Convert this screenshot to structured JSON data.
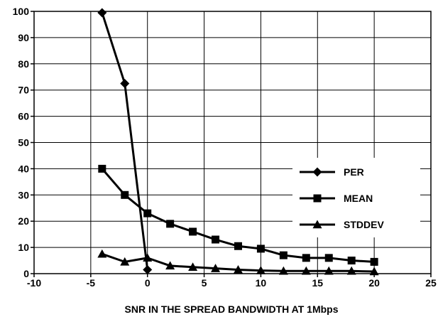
{
  "chart_data": {
    "type": "line",
    "title": "",
    "xlabel": "SNR IN THE SPREAD BANDWIDTH AT 1Mbps",
    "ylabel": "",
    "xlim": [
      -10,
      25
    ],
    "ylim": [
      0,
      100
    ],
    "x_ticks": [
      "-10",
      "-5",
      "0",
      "5",
      "10",
      "15",
      "20",
      "25"
    ],
    "y_ticks": [
      "0",
      "10",
      "20",
      "30",
      "40",
      "50",
      "60",
      "70",
      "80",
      "90",
      "100"
    ],
    "grid": true,
    "legend_position": "right",
    "series": [
      {
        "name": "PER",
        "marker": "diamond",
        "x": [
          -4,
          -2,
          0
        ],
        "y": [
          99.5,
          72.5,
          1.5
        ]
      },
      {
        "name": "MEAN",
        "marker": "square",
        "x": [
          -4,
          -2,
          0,
          2,
          4,
          6,
          8,
          10,
          12,
          14,
          16,
          18,
          20
        ],
        "y": [
          40,
          30,
          23,
          19,
          16,
          13,
          10.5,
          9.5,
          7,
          6,
          6,
          5,
          4.5
        ]
      },
      {
        "name": "STDDEV",
        "marker": "triangle",
        "x": [
          -4,
          -2,
          0,
          2,
          4,
          6,
          8,
          10,
          12,
          14,
          16,
          18,
          20
        ],
        "y": [
          7.5,
          4.5,
          6,
          3,
          2.5,
          2,
          1.5,
          1.2,
          1,
          1,
          1,
          1,
          0.8
        ]
      }
    ]
  }
}
